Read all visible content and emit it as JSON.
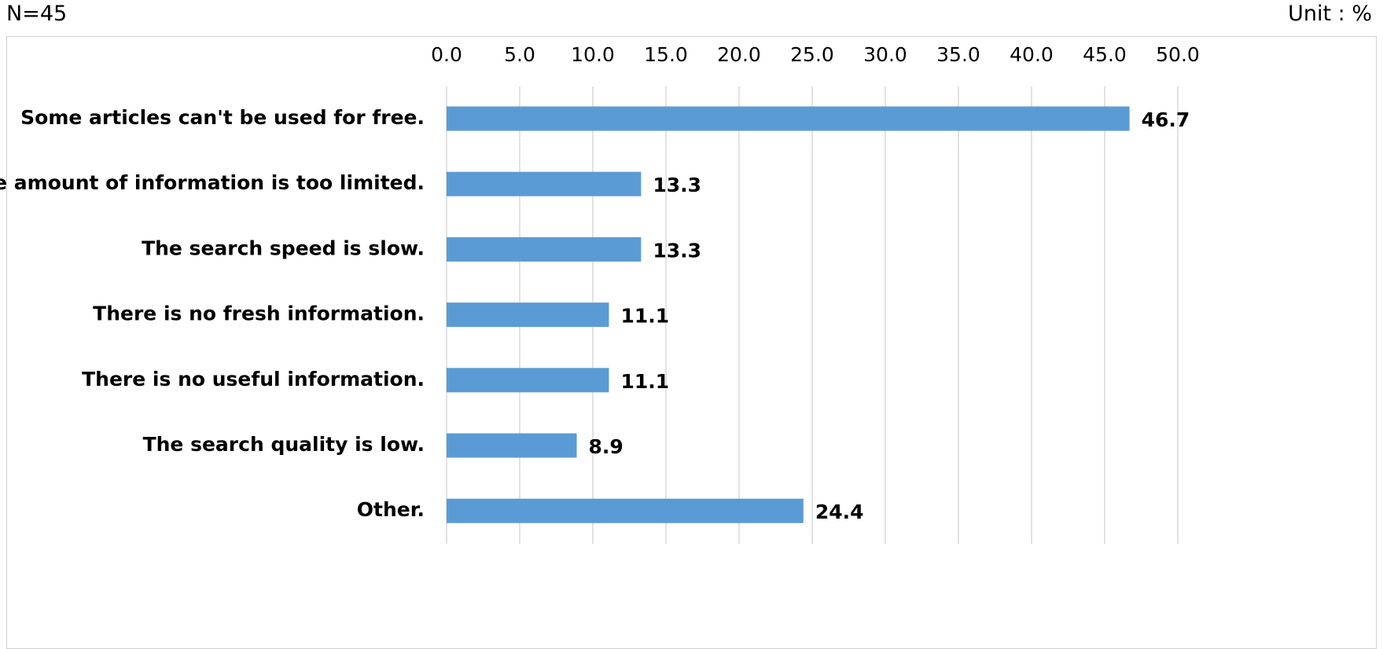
{
  "header": {
    "sample_size": "N=45",
    "unit": "Unit : %"
  },
  "chart_data": {
    "type": "bar",
    "orientation": "horizontal",
    "categories": [
      "Some articles can't be used for free.",
      "The amount of information is too limited.",
      "The search speed is slow.",
      "There is no fresh information.",
      "There is no useful information.",
      "The search quality is low.",
      "Other."
    ],
    "values": [
      46.7,
      13.3,
      13.3,
      11.1,
      11.1,
      8.9,
      24.4
    ],
    "value_labels": [
      "46.7",
      "13.3",
      "13.3",
      "11.1",
      "11.1",
      "8.9",
      "24.4"
    ],
    "xlim": [
      0,
      50
    ],
    "ticks": [
      "0.0",
      "5.0",
      "10.0",
      "15.0",
      "20.0",
      "25.0",
      "30.0",
      "35.0",
      "40.0",
      "45.0",
      "50.0"
    ],
    "tick_step": 5,
    "axis_position": "top",
    "grid": true,
    "bar_color": "#5b9bd5",
    "grid_color": "#d9d9d9"
  }
}
